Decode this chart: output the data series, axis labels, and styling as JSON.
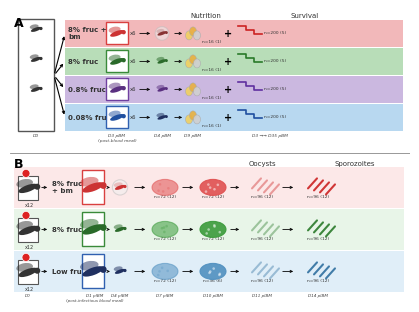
{
  "panel_a": {
    "rows": [
      {
        "label": "8% fruc +\nbm",
        "color": "#f2b8ba",
        "border": "#d94040",
        "line_color": "#cc2222",
        "text_color": "#333333"
      },
      {
        "label": "8% fruc",
        "color": "#b8ddb8",
        "border": "#3a8a3a",
        "line_color": "#2a7a2a",
        "text_color": "#333333"
      },
      {
        "label": "0.8% fruc",
        "color": "#cbb8e0",
        "border": "#7040a0",
        "line_color": "#6030a0",
        "text_color": "#333333"
      },
      {
        "label": "0.08% fruc",
        "color": "#b8d8f0",
        "border": "#3060b0",
        "line_color": "#2050a0",
        "text_color": "#333333"
      }
    ],
    "nutrition_label": "Nutrition",
    "survival_label": "Survival",
    "x_labels": [
      "D0",
      "D3 pBM\n(post-blood meal)",
      "D4 pBM",
      "D9 pBM",
      "D3 →→ D35 pBM"
    ]
  },
  "panel_b": {
    "rows": [
      {
        "label": "8% fruc\n+ bm",
        "color": "#fce8e8",
        "border": "#d94040",
        "oval_fill": "#e05050",
        "oval_light": "#f8c0c0",
        "stripe_color": "#cc2222"
      },
      {
        "label": "8% fruc",
        "color": "#e8f5e8",
        "border": "#3a8a3a",
        "oval_fill": "#3a9a3a",
        "oval_light": "#a0d0a0",
        "stripe_color": "#2a7a2a"
      },
      {
        "label": "Low fruc",
        "color": "#e0eef8",
        "border": "#3060b0",
        "oval_fill": "#5090c0",
        "oval_light": "#a0c8e8",
        "stripe_color": "#3070a0"
      }
    ],
    "oocysts_label": "Oocysts",
    "sporozoites_label": "Sporozoites",
    "x_labels": [
      "D0",
      "D1 pIBM\n(post-infectious blood meal)",
      "D4 pIBM",
      "D7 pIBM",
      "D10 pIBM",
      "D11 pIBM",
      "D14 pIBM"
    ]
  },
  "bg_color": "#ffffff"
}
